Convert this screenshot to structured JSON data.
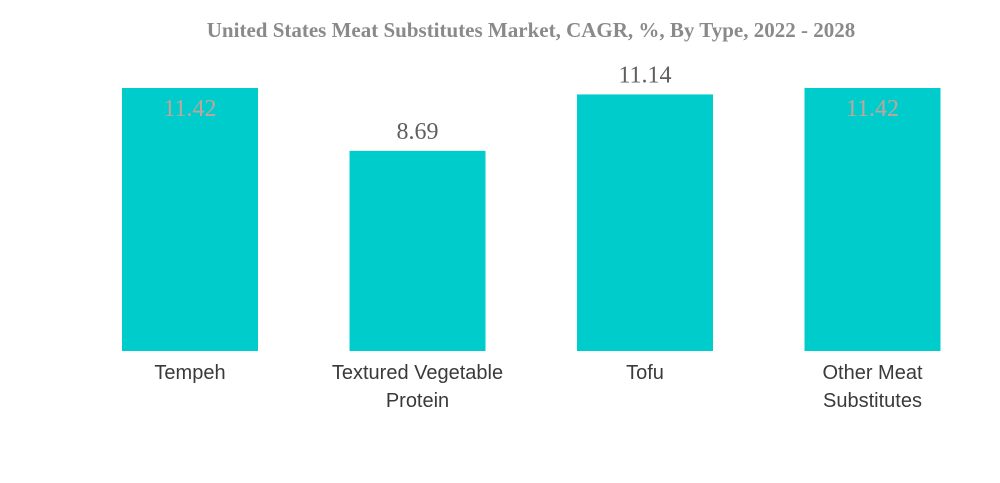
{
  "chart_data": {
    "type": "bar",
    "title": "United States Meat Substitutes Market, CAGR, %, By Type, 2022 - 2028",
    "xlabel": "",
    "ylabel": "",
    "categories": [
      [
        "Tempeh"
      ],
      [
        "Textured Vegetable",
        "Protein"
      ],
      [
        "Tofu"
      ],
      [
        "Other Meat",
        "Substitutes"
      ]
    ],
    "values": [
      11.42,
      8.69,
      11.14,
      11.42
    ],
    "value_labels": [
      "11.42",
      "8.69",
      "11.14",
      "11.42"
    ],
    "ylim": [
      0,
      11.42
    ],
    "grid": false,
    "legend": "none",
    "colors": {
      "bar": "#00CCCC",
      "title": "#8A8A8A",
      "label_outside": "#5F5F5F",
      "label_inside": "#C2A59A",
      "category": "#3A3A3A"
    }
  }
}
